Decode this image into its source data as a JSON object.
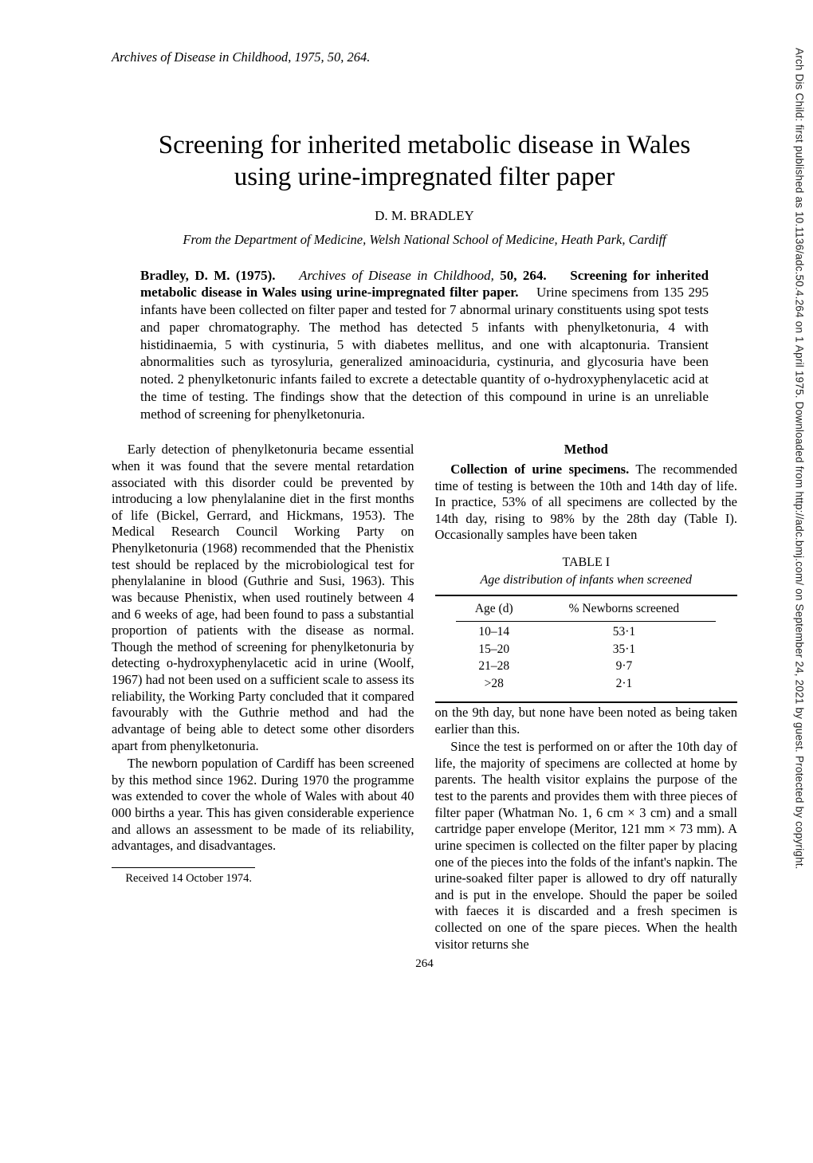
{
  "sidebar_text": "Arch Dis Child: first published as 10.1136/adc.50.4.264 on 1 April 1975. Downloaded from http://adc.bmj.com/ on September 24, 2021 by guest. Protected by copyright.",
  "running_head": "Archives of Disease in Childhood, 1975, 50, 264.",
  "title_line1": "Screening for inherited metabolic disease in Wales",
  "title_line2": "using urine-impregnated filter paper",
  "author": "D. M. BRADLEY",
  "affiliation": "From the Department of Medicine, Welsh National School of Medicine, Heath Park, Cardiff",
  "abstract": {
    "lead": "Bradley, D. M. (1975).",
    "cite": "Archives of Disease in Childhood,",
    "cite_tail": " 50, 264.",
    "bold_title": "Screening for inherited metabolic disease in Wales using urine-impregnated filter paper.",
    "body": "Urine specimens from 135 295 infants have been collected on filter paper and tested for 7 abnormal urinary constituents using spot tests and paper chromatography. The method has detected 5 infants with phenylketonuria, 4 with histidinaemia, 5 with cystinuria, 5 with diabetes mellitus, and one with alcaptonuria. Transient abnormalities such as tyrosyluria, generalized aminoaciduria, cystinuria, and glycosuria have been noted. 2 phenylketonuric infants failed to excrete a detectable quantity of o-hydroxyphenylacetic acid at the time of testing. The findings show that the detection of this compound in urine is an unreliable method of screening for phenylketonuria."
  },
  "left_column": {
    "p1": "Early detection of phenylketonuria became essential when it was found that the severe mental retardation associated with this disorder could be prevented by introducing a low phenylalanine diet in the first months of life (Bickel, Gerrard, and Hickmans, 1953). The Medical Research Council Working Party on Phenylketonuria (1968) recommended that the Phenistix test should be replaced by the microbiological test for phenylalanine in blood (Guthrie and Susi, 1963). This was because Phenistix, when used routinely between 4 and 6 weeks of age, had been found to pass a substantial proportion of patients with the disease as normal. Though the method of screening for phenylketonuria by detecting o-hydroxyphenylacetic acid in urine (Woolf, 1967) had not been used on a sufficient scale to assess its reliability, the Working Party concluded that it compared favourably with the Guthrie method and had the advantage of being able to detect some other disorders apart from phenylketonuria.",
    "p2": "The newborn population of Cardiff has been screened by this method since 1962. During 1970 the programme was extended to cover the whole of Wales with about 40 000 births a year. This has given considerable experience and allows an assessment to be made of its reliability, advantages, and disadvantages.",
    "footnote": "Received 14 October 1974."
  },
  "right_column": {
    "method_head": "Method",
    "p1_head": "Collection of urine specimens.",
    "p1_body": " The recommended time of testing is between the 10th and 14th day of life. In practice, 53% of all specimens are collected by the 14th day, rising to 98% by the 28th day (Table I). Occasionally samples have been taken",
    "table": {
      "label": "TABLE I",
      "caption": "Age distribution of infants when screened",
      "col1": "Age (d)",
      "col2": "% Newborns screened",
      "rows": [
        {
          "age": "10–14",
          "pct": "53·1"
        },
        {
          "age": "15–20",
          "pct": "35·1"
        },
        {
          "age": "21–28",
          "pct": "9·7"
        },
        {
          "age": ">28",
          "pct": "2·1"
        }
      ]
    },
    "p2": "on the 9th day, but none have been noted as being taken earlier than this.",
    "p3": "Since the test is performed on or after the 10th day of life, the majority of specimens are collected at home by parents. The health visitor explains the purpose of the test to the parents and provides them with three pieces of filter paper (Whatman No. 1, 6 cm × 3 cm) and a small cartridge paper envelope (Meritor, 121 mm × 73 mm). A urine specimen is collected on the filter paper by placing one of the pieces into the folds of the infant's napkin. The urine-soaked filter paper is allowed to dry off naturally and is put in the envelope. Should the paper be soiled with faeces it is discarded and a fresh specimen is collected on one of the spare pieces. When the health visitor returns she"
  },
  "page_number": "264"
}
